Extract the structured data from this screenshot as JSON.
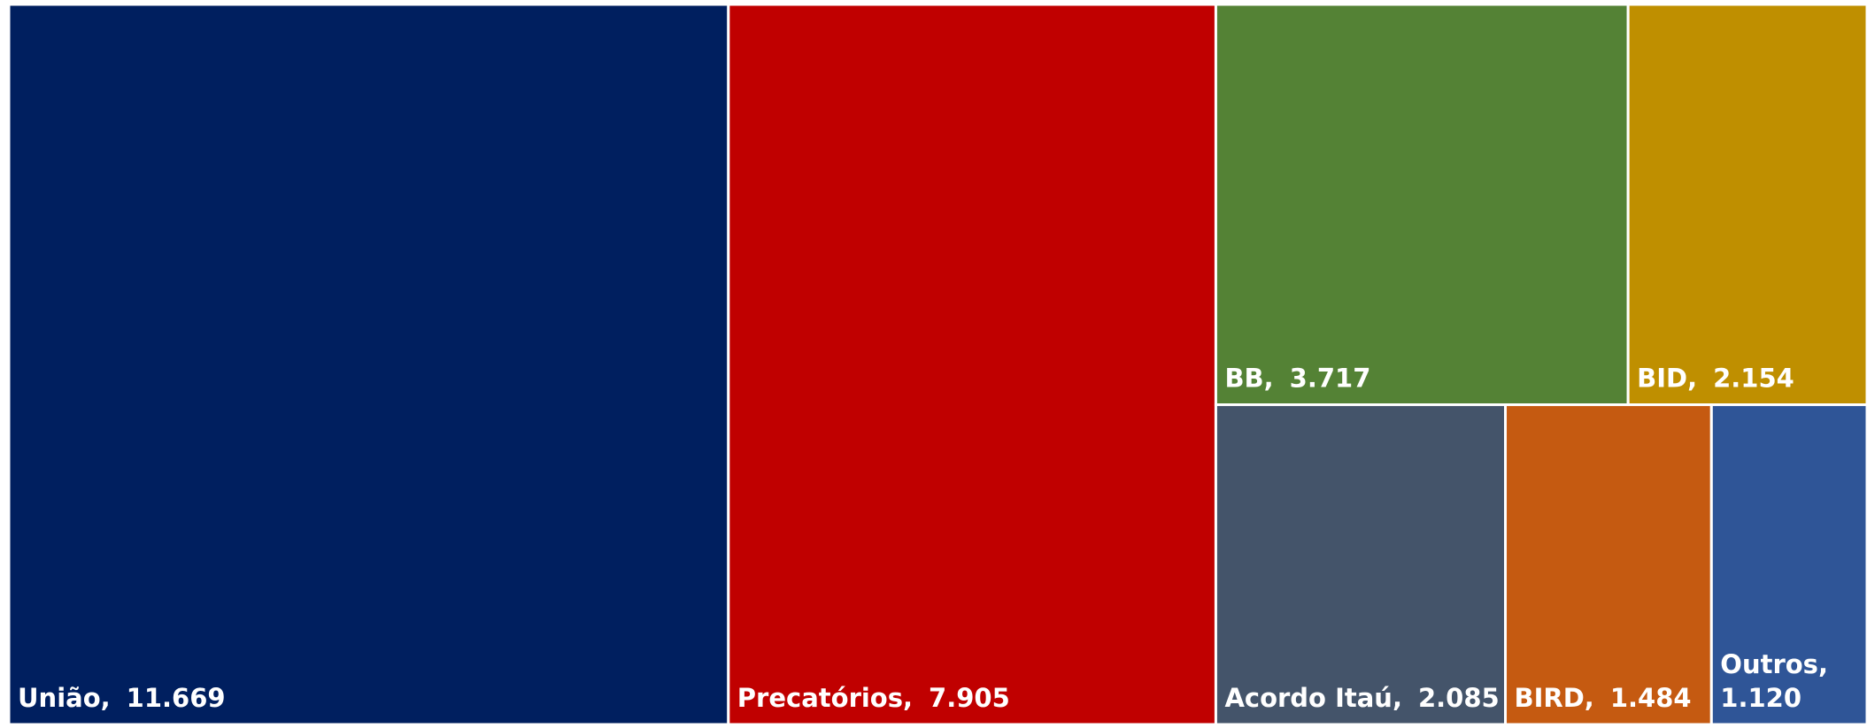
{
  "chart_data": {
    "type": "treemap",
    "categories": [
      "União",
      "Precatórios",
      "BB",
      "BID",
      "Acordo Itaú",
      "BIRD",
      "Outros"
    ],
    "values": [
      11669,
      7905,
      3717,
      2154,
      2085,
      1484,
      1120
    ],
    "value_labels": [
      "11.669",
      "7.905",
      "3.717",
      "2.154",
      "2.085",
      "1.484",
      "1.120"
    ],
    "colors": [
      "#001f5f",
      "#c00000",
      "#548235",
      "#bf8f00",
      "#44546a",
      "#c55a11",
      "#2f5597"
    ]
  }
}
